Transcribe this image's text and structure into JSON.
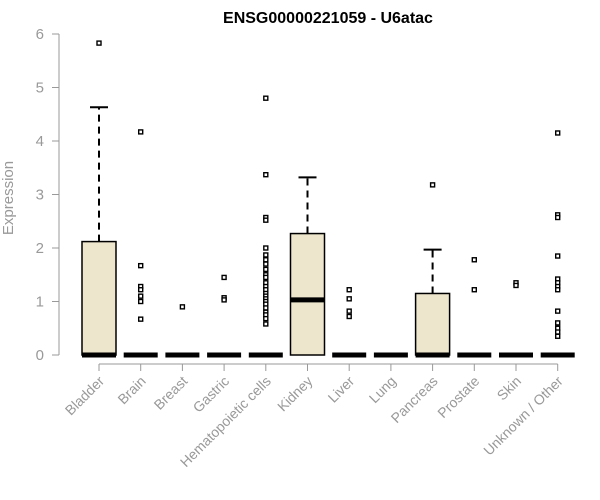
{
  "chart_data": {
    "type": "boxplot",
    "title": "ENSG00000221059 - U6atac",
    "ylabel": "Expression",
    "xlabel": "",
    "ylim": [
      0,
      6
    ],
    "yticks": [
      0,
      1,
      2,
      3,
      4,
      5,
      6
    ],
    "box_fill": "#ede6cc",
    "categories": [
      "Bladder",
      "Brain",
      "Breast",
      "Gastric",
      "Hematopoietic cells",
      "Kidney",
      "Liver",
      "Lung",
      "Pancreas",
      "Prostate",
      "Skin",
      "Unknown / Other"
    ],
    "boxes": [
      {
        "min": 0,
        "q1": 0,
        "median": 0,
        "q3": 2.12,
        "max": 4.63,
        "outliers": [
          5.83
        ]
      },
      {
        "min": 0,
        "q1": 0,
        "median": 0,
        "q3": 0,
        "max": 0,
        "outliers": [
          4.17,
          1.67,
          1.28,
          1.22,
          1.1,
          1.0,
          0.67
        ]
      },
      {
        "min": 0,
        "q1": 0,
        "median": 0,
        "q3": 0,
        "max": 0,
        "outliers": [
          0.9
        ]
      },
      {
        "min": 0,
        "q1": 0,
        "median": 0,
        "q3": 0,
        "max": 0,
        "outliers": [
          1.45,
          1.07,
          1.03
        ]
      },
      {
        "min": 0,
        "q1": 0,
        "median": 0,
        "q3": 0,
        "max": 0,
        "outliers": [
          4.8,
          3.37,
          2.57,
          2.52,
          2.0,
          1.87,
          1.78,
          1.7,
          1.6,
          1.5,
          1.45,
          1.35,
          1.28,
          1.22,
          1.15,
          1.1,
          1.05,
          1.0,
          0.95,
          0.88,
          0.8,
          0.75,
          0.68,
          0.58
        ]
      },
      {
        "min": 0,
        "q1": 0,
        "median": 1.03,
        "q3": 2.27,
        "max": 3.32,
        "outliers": []
      },
      {
        "min": 0,
        "q1": 0,
        "median": 0,
        "q3": 0,
        "max": 0,
        "outliers": [
          1.22,
          1.05,
          0.82,
          0.72
        ]
      },
      {
        "min": 0,
        "q1": 0,
        "median": 0,
        "q3": 0,
        "max": 0,
        "outliers": []
      },
      {
        "min": 0,
        "q1": 0,
        "median": 0,
        "q3": 1.15,
        "max": 1.97,
        "outliers": [
          3.18
        ]
      },
      {
        "min": 0,
        "q1": 0,
        "median": 0,
        "q3": 0,
        "max": 0,
        "outliers": [
          1.78,
          1.22
        ]
      },
      {
        "min": 0,
        "q1": 0,
        "median": 0,
        "q3": 0,
        "max": 0,
        "outliers": [
          1.35,
          1.3
        ]
      },
      {
        "min": 0,
        "q1": 0,
        "median": 0,
        "q3": 0,
        "max": 0,
        "outliers": [
          4.15,
          2.62,
          2.57,
          1.85,
          1.42,
          1.35,
          1.28,
          1.22,
          0.82,
          0.6,
          0.5,
          0.43,
          0.35
        ]
      }
    ]
  }
}
